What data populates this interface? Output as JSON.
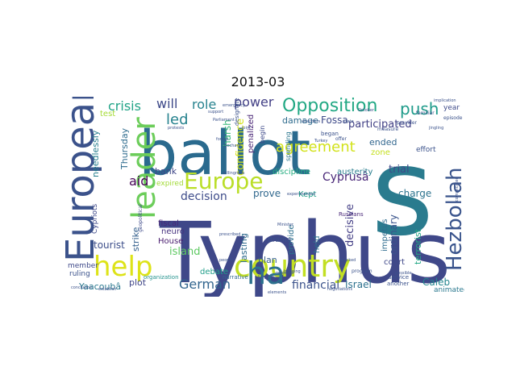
{
  "title": "2013-03",
  "words": [
    {
      "text": "Typhus",
      "color": "#3f4889"
    },
    {
      "text": "ballot",
      "color": "#2a6a8e"
    },
    {
      "text": "s",
      "color": "#2a7b8e"
    },
    {
      "text": "European",
      "color": "#3b528b"
    },
    {
      "text": "help",
      "color": "#dde318"
    },
    {
      "text": "country",
      "color": "#c2df23"
    },
    {
      "text": "ha",
      "color": "#2c718e"
    },
    {
      "text": "leader",
      "color": "#6ccd5a"
    },
    {
      "text": "Hezbollah",
      "color": "#3a548c"
    },
    {
      "text": "Europe",
      "color": "#bade28"
    },
    {
      "text": "Opposition",
      "color": "#22a884"
    },
    {
      "text": "agreement",
      "color": "#d2e21b"
    },
    {
      "text": "push",
      "color": "#1e9b8a"
    },
    {
      "text": "crisis",
      "color": "#20a386"
    },
    {
      "text": "led",
      "color": "#26828e"
    },
    {
      "text": "will",
      "color": "#3e4989"
    },
    {
      "text": "role",
      "color": "#26828e"
    },
    {
      "text": "power",
      "color": "#423f85"
    },
    {
      "text": "decision",
      "color": "#3e4c8a"
    },
    {
      "text": "Cyprusâ",
      "color": "#482677"
    },
    {
      "text": "German",
      "color": "#32658e"
    },
    {
      "text": "financial",
      "color": "#3b528b"
    },
    {
      "text": "Israel",
      "color": "#2d718e"
    },
    {
      "text": "Caleb",
      "color": "#24868e"
    },
    {
      "text": "aid",
      "color": "#440154"
    },
    {
      "text": "bank",
      "color": "#3f4788"
    },
    {
      "text": "island",
      "color": "#5ec962"
    },
    {
      "text": "tourist",
      "color": "#3d4e8a"
    },
    {
      "text": "Yaacoubâ",
      "color": "#2a788e"
    },
    {
      "text": "plot",
      "color": "#404688"
    },
    {
      "text": "debate",
      "color": "#1f9e89"
    },
    {
      "text": "Fossa",
      "color": "#3e4a89"
    },
    {
      "text": "damage",
      "color": "#2f6c8e"
    },
    {
      "text": "participated",
      "color": "#424186"
    },
    {
      "text": "trial",
      "color": "#3e4a89"
    },
    {
      "text": "charge",
      "color": "#2c738e"
    },
    {
      "text": "ordinary",
      "color": "#3a548c"
    },
    {
      "text": "court",
      "color": "#3f4889"
    },
    {
      "text": "animated",
      "color": "#2a788e"
    },
    {
      "text": "confidence",
      "color": "#d5e21a"
    },
    {
      "text": "harsh",
      "color": "#35b779"
    },
    {
      "text": "penalized",
      "color": "#482475"
    },
    {
      "text": "lasting",
      "color": "#2f6b8e"
    },
    {
      "text": "plan",
      "color": "#355f8d"
    },
    {
      "text": "prove",
      "color": "#31688e"
    },
    {
      "text": "Kept",
      "color": "#1fa188"
    },
    {
      "text": "decisive",
      "color": "#433e85"
    },
    {
      "text": "ended",
      "color": "#31668e"
    },
    {
      "text": "zone",
      "color": "#c5e021"
    },
    {
      "text": "budget",
      "color": "#2a788e"
    },
    {
      "text": "member",
      "color": "#3e4989"
    },
    {
      "text": "ruling",
      "color": "#3b528b"
    },
    {
      "text": "House",
      "color": "#481c6e"
    },
    {
      "text": "strike",
      "color": "#35608d"
    },
    {
      "text": "fiscal",
      "color": "#482878"
    },
    {
      "text": "neuro",
      "color": "#46337f"
    },
    {
      "text": "expired",
      "color": "#a2da37"
    },
    {
      "text": "Thursday",
      "color": "#2f6c8e"
    },
    {
      "text": "needlessly",
      "color": "#277f8e"
    },
    {
      "text": "test",
      "color": "#a5db36"
    },
    {
      "text": "Cypriots",
      "color": "#3e4989"
    },
    {
      "text": "discipline",
      "color": "#26ad81"
    },
    {
      "text": "austerity",
      "color": "#287d8e"
    },
    {
      "text": "spending",
      "color": "#2a768e"
    },
    {
      "text": "impetus",
      "color": "#2f6c8e"
    },
    {
      "text": "terrorist",
      "color": "#22a785"
    },
    {
      "text": "effort",
      "color": "#3b528b"
    },
    {
      "text": "year",
      "color": "#3e4a89"
    },
    {
      "text": "held",
      "color": "#2c738e"
    },
    {
      "text": "provide",
      "color": "#2d708e"
    },
    {
      "text": "drama",
      "color": "#3b528b"
    },
    {
      "text": "Union",
      "color": "#3b528b"
    },
    {
      "text": "narrative",
      "color": "#31688e"
    },
    {
      "text": "organization",
      "color": "#21918c"
    },
    {
      "text": "geopolitical",
      "color": "#3e4a89"
    },
    {
      "text": "Russians",
      "color": "#482677"
    },
    {
      "text": "service",
      "color": "#3b528b"
    },
    {
      "text": "another",
      "color": "#3b528b"
    },
    {
      "text": "provider",
      "color": "#3b528b"
    },
    {
      "text": "familiar",
      "color": "#3b528b"
    },
    {
      "text": "episode",
      "color": "#3b528b"
    },
    {
      "text": "began",
      "color": "#3b528b"
    },
    {
      "text": "begin",
      "color": "#3e4a89"
    },
    {
      "text": "designate",
      "color": "#3b528b"
    },
    {
      "text": "bridging",
      "color": "#3b528b"
    },
    {
      "text": "program",
      "color": "#3b528b"
    },
    {
      "text": "possible",
      "color": "#3b528b"
    },
    {
      "text": "negotiations",
      "color": "#3b528b"
    },
    {
      "text": "measure",
      "color": "#3b528b"
    },
    {
      "text": "emergency",
      "color": "#3b528b"
    },
    {
      "text": "establish",
      "color": "#3b528b"
    },
    {
      "text": "support",
      "color": "#3b528b"
    },
    {
      "text": "Turkey",
      "color": "#3b528b"
    },
    {
      "text": "implication",
      "color": "#3b528b"
    },
    {
      "text": "complicated",
      "color": "#3b528b"
    },
    {
      "text": "October",
      "color": "#3b528b"
    },
    {
      "text": "willingness",
      "color": "#3b528b"
    },
    {
      "text": "disorders",
      "color": "#3b528b"
    },
    {
      "text": "state",
      "color": "#3b528b"
    },
    {
      "text": "offer",
      "color": "#3b528b"
    },
    {
      "text": "jingling",
      "color": "#3b528b"
    },
    {
      "text": "conclusion",
      "color": "#3b528b"
    },
    {
      "text": "experimented",
      "color": "#3b528b"
    },
    {
      "text": "blocked",
      "color": "#3b528b"
    },
    {
      "text": "elements",
      "color": "#3b528b"
    },
    {
      "text": "prescribed",
      "color": "#3b528b"
    },
    {
      "text": "forces",
      "color": "#3b528b"
    },
    {
      "text": "Bechara",
      "color": "#3b528b"
    },
    {
      "text": "revealed",
      "color": "#3b528b"
    },
    {
      "text": "people",
      "color": "#3b528b"
    },
    {
      "text": "joint",
      "color": "#3b528b"
    },
    {
      "text": "Minister",
      "color": "#3b528b"
    },
    {
      "text": "protests",
      "color": "#3b528b"
    },
    {
      "text": "Parliament",
      "color": "#3b528b"
    }
  ]
}
